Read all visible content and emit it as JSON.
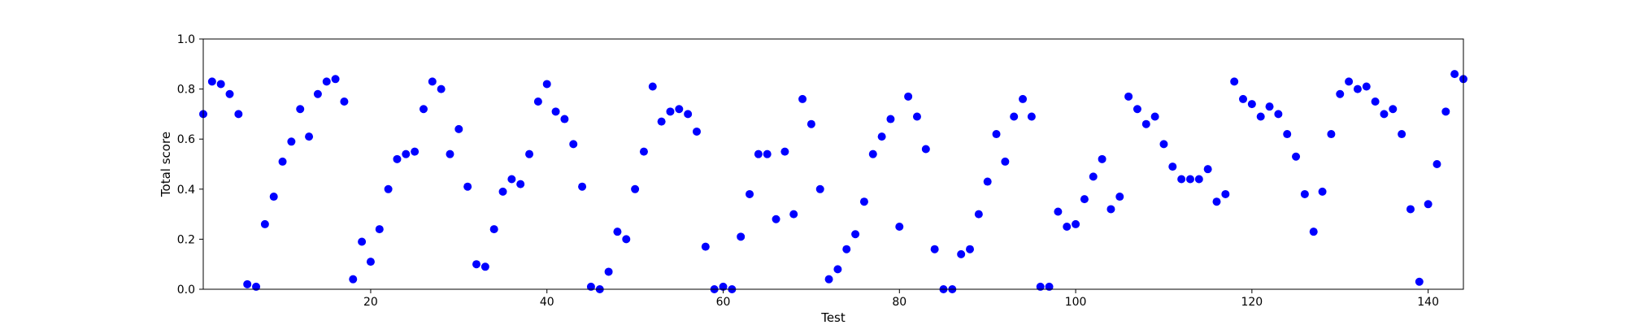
{
  "chart_data": {
    "type": "scatter",
    "xlabel": "Test",
    "ylabel": "Total score",
    "xlim": [
      1,
      144
    ],
    "ylim": [
      0,
      1
    ],
    "grid": false,
    "x_ticks": [
      20,
      40,
      60,
      80,
      100,
      120,
      140
    ],
    "y_ticks": [
      0.0,
      0.2,
      0.4,
      0.6,
      0.8,
      1.0
    ],
    "x_tick_labels": [
      "20",
      "40",
      "60",
      "80",
      "100",
      "120",
      "140"
    ],
    "y_tick_labels": [
      "0.0",
      "0.2",
      "0.4",
      "0.6",
      "0.8",
      "1.0"
    ],
    "marker_color": "#0000ff",
    "series": [
      {
        "x": [
          1,
          2,
          3,
          4,
          5,
          6,
          7,
          8,
          9,
          10,
          11,
          12,
          13,
          14,
          15,
          16,
          17,
          18,
          19,
          20,
          21,
          22,
          23,
          24,
          25,
          26,
          27,
          28,
          29,
          30,
          31,
          32,
          33,
          34,
          35,
          36,
          37,
          38,
          39,
          40,
          41,
          42,
          43,
          44,
          45,
          46,
          47,
          48,
          49,
          50,
          51,
          52,
          53,
          54,
          55,
          56,
          57,
          58,
          59,
          60,
          61,
          62,
          63,
          64,
          65,
          66,
          67,
          68,
          69,
          70,
          71,
          72,
          73,
          74,
          75,
          76,
          77,
          78,
          79,
          80,
          81,
          82,
          83,
          84,
          85,
          86,
          87,
          88,
          89,
          90,
          91,
          92,
          93,
          94,
          95,
          96,
          97,
          98,
          99,
          100,
          101,
          102,
          103,
          104,
          105,
          106,
          107,
          108,
          109,
          110,
          111,
          112,
          113,
          114,
          115,
          116,
          117,
          118,
          119,
          120,
          121,
          122,
          123,
          124,
          125,
          126,
          127,
          128,
          129,
          130,
          131,
          132,
          133,
          134,
          135,
          136,
          137,
          138,
          139,
          140,
          141,
          142,
          143,
          144
        ],
        "values": [
          0.7,
          0.83,
          0.82,
          0.78,
          0.7,
          0.02,
          0.01,
          0.26,
          0.37,
          0.51,
          0.59,
          0.72,
          0.61,
          0.78,
          0.83,
          0.84,
          0.75,
          0.04,
          0.19,
          0.11,
          0.24,
          0.4,
          0.52,
          0.54,
          0.55,
          0.72,
          0.83,
          0.8,
          0.54,
          0.64,
          0.41,
          0.1,
          0.09,
          0.24,
          0.39,
          0.44,
          0.42,
          0.54,
          0.75,
          0.82,
          0.71,
          0.68,
          0.58,
          0.41,
          0.01,
          0.0,
          0.07,
          0.23,
          0.2,
          0.4,
          0.55,
          0.81,
          0.67,
          0.71,
          0.72,
          0.7,
          0.63,
          0.17,
          0.0,
          0.01,
          0.0,
          0.21,
          0.38,
          0.54,
          0.54,
          0.28,
          0.55,
          0.3,
          0.76,
          0.66,
          0.4,
          0.04,
          0.08,
          0.16,
          0.22,
          0.35,
          0.54,
          0.61,
          0.68,
          0.25,
          0.77,
          0.69,
          0.56,
          0.16,
          0.0,
          0.0,
          0.14,
          0.16,
          0.3,
          0.43,
          0.62,
          0.51,
          0.69,
          0.76,
          0.69,
          0.01,
          0.01,
          0.31,
          0.25,
          0.26,
          0.36,
          0.45,
          0.52,
          0.32,
          0.37,
          0.77,
          0.72,
          0.66,
          0.69,
          0.58,
          0.49,
          0.44,
          0.44,
          0.44,
          0.48,
          0.35,
          0.38,
          0.83,
          0.76,
          0.74,
          0.69,
          0.73,
          0.7,
          0.62,
          0.53,
          0.38,
          0.23,
          0.39,
          0.62,
          0.78,
          0.83,
          0.8,
          0.81,
          0.75,
          0.7,
          0.72,
          0.62,
          0.32,
          0.03,
          0.34,
          0.5,
          0.71,
          0.86,
          0.84
        ]
      }
    ]
  }
}
